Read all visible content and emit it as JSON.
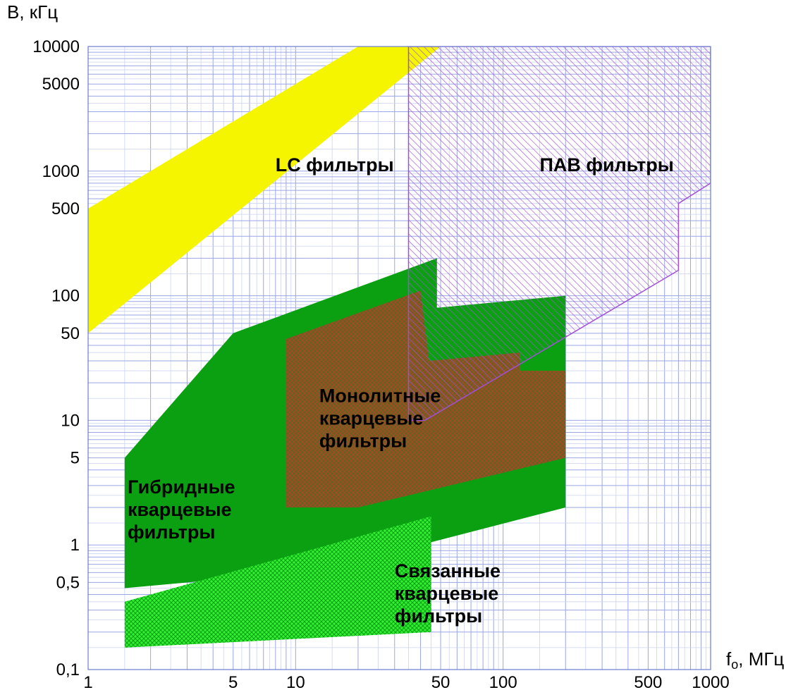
{
  "chart_data": {
    "type": "area",
    "title": "",
    "xlabel": "f",
    "xlabel_sub": "o",
    "xlabel_unit": ", МГц",
    "ylabel": "B, кГц",
    "xscale": "log",
    "yscale": "log",
    "xlim": [
      1,
      1000
    ],
    "ylim": [
      0.1,
      10000
    ],
    "grid": true,
    "x_ticks": [
      {
        "value": 1,
        "label": "1"
      },
      {
        "value": 5,
        "label": "5"
      },
      {
        "value": 10,
        "label": "10"
      },
      {
        "value": 50,
        "label": "50"
      },
      {
        "value": 100,
        "label": "100"
      },
      {
        "value": 500,
        "label": "500"
      },
      {
        "value": 1000,
        "label": "1000"
      }
    ],
    "y_ticks": [
      {
        "value": 0.1,
        "label": "0,1"
      },
      {
        "value": 0.5,
        "label": "0,5"
      },
      {
        "value": 1,
        "label": "1"
      },
      {
        "value": 5,
        "label": "5"
      },
      {
        "value": 10,
        "label": "10"
      },
      {
        "value": 50,
        "label": "50"
      },
      {
        "value": 100,
        "label": "100"
      },
      {
        "value": 500,
        "label": "500"
      },
      {
        "value": 1000,
        "label": "1000"
      },
      {
        "value": 5000,
        "label": "5000"
      },
      {
        "value": 10000,
        "label": "10000"
      }
    ],
    "regions": [
      {
        "id": "lc",
        "label_lines": [
          "LC фильтры"
        ],
        "label_pos": {
          "x": 8,
          "y": 1000
        },
        "color": "#f5f500",
        "pattern": "solid",
        "polygon": [
          [
            1,
            50
          ],
          [
            1,
            500
          ],
          [
            20,
            10000
          ],
          [
            50,
            10000
          ],
          [
            1,
            50
          ]
        ]
      },
      {
        "id": "saw",
        "label_lines": [
          "ПАВ фильтры"
        ],
        "label_pos": {
          "x": 150,
          "y": 1000
        },
        "color": "#b070e0",
        "pattern": "hatch",
        "polygon": [
          [
            35,
            10000
          ],
          [
            1000,
            10000
          ],
          [
            1000,
            800
          ],
          [
            700,
            550
          ],
          [
            700,
            160
          ],
          [
            42,
            10
          ],
          [
            35,
            10
          ]
        ]
      },
      {
        "id": "hybrid",
        "label_lines": [
          "Гибридные",
          "кварцевые",
          "фильтры"
        ],
        "label_pos": {
          "x": 1.55,
          "y": 2.6
        },
        "color": "#0aa012",
        "pattern": "solid",
        "polygon": [
          [
            1.5,
            5
          ],
          [
            5,
            50
          ],
          [
            48,
            200
          ],
          [
            48,
            80
          ],
          [
            200,
            100
          ],
          [
            200,
            2
          ],
          [
            40,
            1
          ],
          [
            10,
            0.6
          ],
          [
            1.5,
            0.45
          ]
        ]
      },
      {
        "id": "monolithic",
        "label_lines": [
          "Монолитные",
          "кварцевые",
          "фильтры"
        ],
        "label_pos": {
          "x": 13,
          "y": 14
        },
        "color": "#7a5520",
        "pattern": "crosshatch",
        "polygon": [
          [
            9,
            45
          ],
          [
            40,
            110
          ],
          [
            44,
            30
          ],
          [
            120,
            35
          ],
          [
            120,
            25
          ],
          [
            200,
            25
          ],
          [
            200,
            5
          ],
          [
            20,
            2
          ],
          [
            9,
            2
          ]
        ]
      },
      {
        "id": "coupled",
        "label_lines": [
          "Связанные",
          "кварцевые",
          "фильтры"
        ],
        "label_pos": {
          "x": 30,
          "y": 0.55
        },
        "color": "#33ee33",
        "pattern": "crosshatch",
        "polygon": [
          [
            1.5,
            0.15
          ],
          [
            45,
            0.2
          ],
          [
            45,
            1.7
          ],
          [
            1.5,
            0.35
          ]
        ]
      }
    ]
  }
}
